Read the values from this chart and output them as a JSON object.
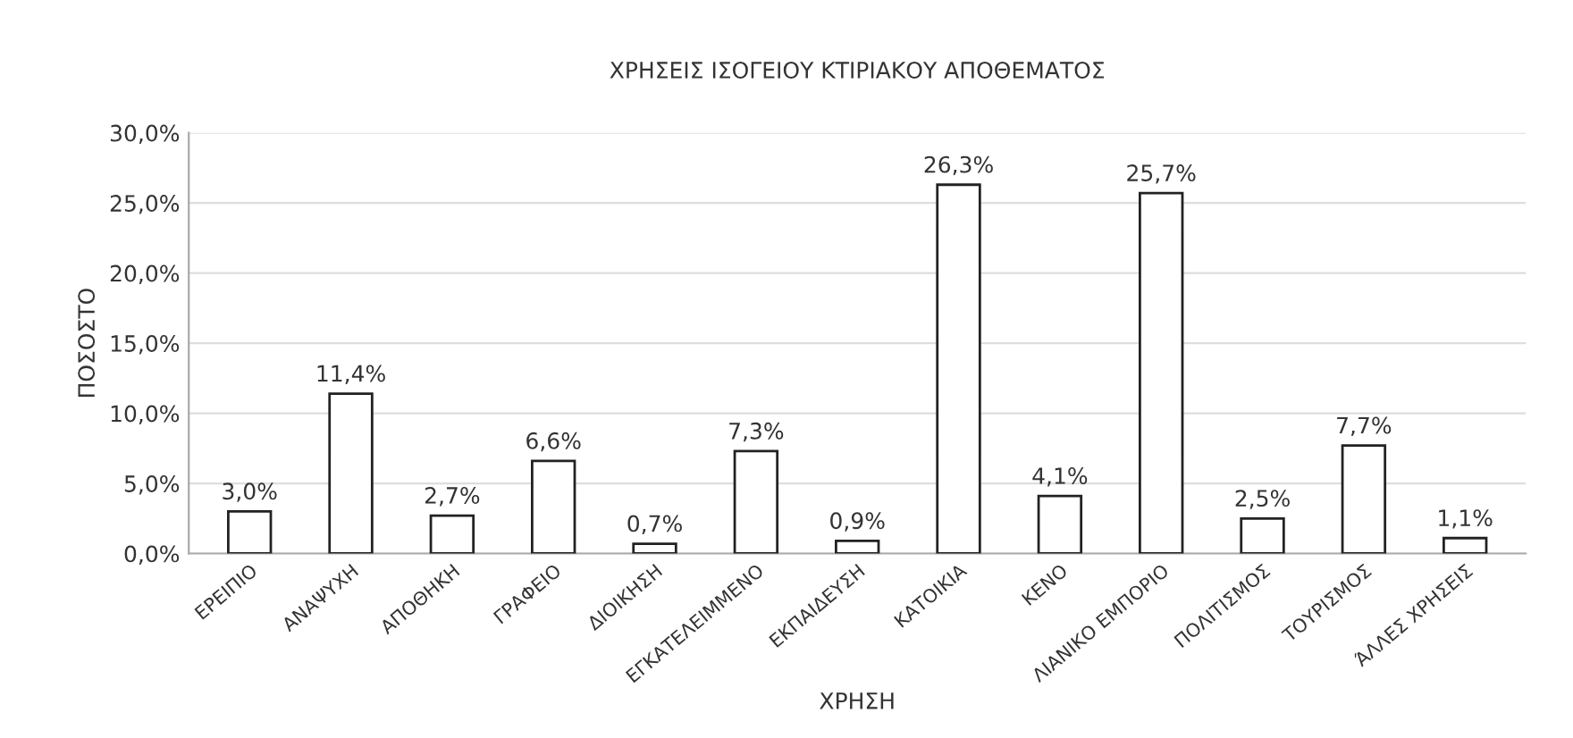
{
  "chart_data": {
    "type": "bar",
    "title": "ΧΡΗΣΕΙΣ ΙΣΟΓΕΙΟΥ ΚΤΙΡΙΑΚΟΥ ΑΠΟΘΕΜΑΤΟΣ",
    "xlabel": "ΧΡΗΣΗ",
    "ylabel": "ΠΟΣΟΣΤΟ",
    "categories": [
      "ΕΡΕΙΠΙΟ",
      "ΑΝΑΨΥΧΗ",
      "ΑΠΟΘΗΚΗ",
      "ΓΡΑΦΕΙΟ",
      "ΔΙΟΙΚΗΣΗ",
      "ΕΓΚΑΤΕΛΕΙΜΜΕΝΟ",
      "ΕΚΠΑΙΔΕΥΣΗ",
      "ΚΑΤΟΙΚΙΑ",
      "ΚΕΝΟ",
      "ΛΙΑΝΙΚΟ ΕΜΠΟΡΙΟ",
      "ΠΟΛΙΤΙΣΜΟΣ",
      "ΤΟΥΡΙΣΜΟΣ",
      "ΆΛΛΕΣ ΧΡΗΣΕΙΣ"
    ],
    "values": [
      3.0,
      11.4,
      2.7,
      6.6,
      0.7,
      7.3,
      0.9,
      26.3,
      4.1,
      25.7,
      2.5,
      7.7,
      1.1
    ],
    "value_labels": [
      "3,0%",
      "11,4%",
      "2,7%",
      "6,6%",
      "0,7%",
      "7,3%",
      "0,9%",
      "26,3%",
      "4,1%",
      "25,7%",
      "2,5%",
      "7,7%",
      "1,1%"
    ],
    "color": "#ffffff",
    "ylim": [
      0,
      30
    ],
    "yticks": [
      {
        "value": 0,
        "label": "0,0%"
      },
      {
        "value": 5,
        "label": "5,0%"
      },
      {
        "value": 10,
        "label": "10,0%"
      },
      {
        "value": 15,
        "label": "15,0%"
      },
      {
        "value": 20,
        "label": "20,0%"
      },
      {
        "value": 25,
        "label": "25,0%"
      },
      {
        "value": 30,
        "label": "30,0%"
      }
    ],
    "grid": "y",
    "legend": false
  }
}
